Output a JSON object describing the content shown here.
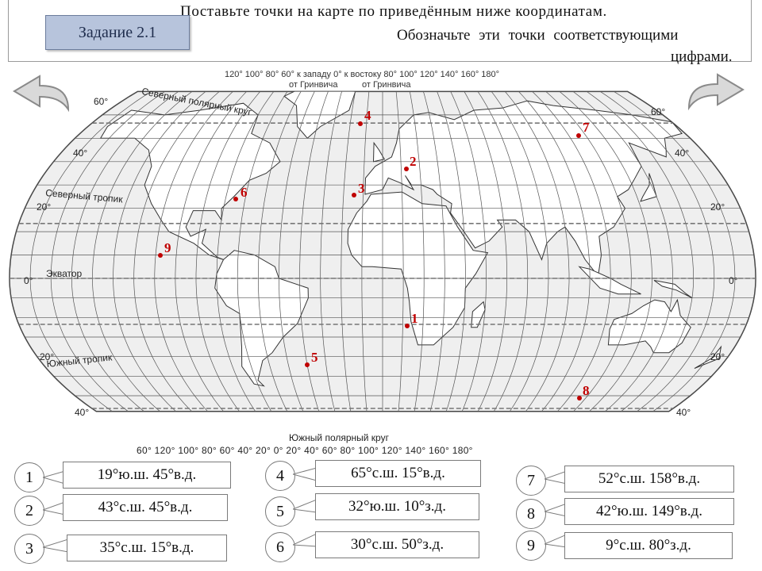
{
  "header": {
    "task_label": "Задание 2.1",
    "instruction_line1": "Поставьте точки на карте по приведённым ниже координатам.",
    "instruction_line2": "Обозначьте эти точки соответствующими",
    "instruction_line3": "цифрами."
  },
  "navigation": {
    "prev_icon": "curved-arrow-left-icon",
    "next_icon": "curved-arrow-right-icon"
  },
  "map": {
    "top_scale": "120° 100° 80° 60° к западу 0° к востоку 80° 100° 120° 140° 160° 180°",
    "top_sub_west": "от Гринвича",
    "top_sub_east": "от Гринвича",
    "bottom_scale": "60°   120°   100°   80°   60°   40°   20°   0°   20°   40°   60°   80°   100°   120°   140°   160°   180°",
    "lines": {
      "arctic": "Северный полярный круг",
      "tropic_north": "Северный тропик",
      "equator": "Экватор",
      "tropic_south": "Южный тропик",
      "antarctic": "Южный полярный круг"
    },
    "lat_labels": {
      "n60": "60°",
      "n40": "40°",
      "n20": "20°",
      "eq": "0°",
      "s20": "20°",
      "s40": "40°",
      "e60": "60°",
      "e40": "40°",
      "e20": "20°",
      "e0": "0°",
      "es20": "20°",
      "es40": "40°"
    },
    "points": [
      {
        "label": "1",
        "lat": -19,
        "lon": 45
      },
      {
        "label": "2",
        "lat": 43,
        "lon": 45
      },
      {
        "label": "3",
        "lat": 35,
        "lon": 15
      },
      {
        "label": "4",
        "lat": 65,
        "lon": 15
      },
      {
        "label": "5",
        "lat": -32,
        "lon": -10
      },
      {
        "label": "6",
        "lat": 30,
        "lon": -50
      },
      {
        "label": "7",
        "lat": 52,
        "lon": 158
      },
      {
        "label": "8",
        "lat": -42,
        "lon": 149
      },
      {
        "label": "9",
        "lat": 9,
        "lon": -80
      }
    ]
  },
  "tasks": [
    {
      "number": "1",
      "coords": "19°ю.ш. 45°в.д."
    },
    {
      "number": "2",
      "coords": "43°с.ш. 45°в.д."
    },
    {
      "number": "3",
      "coords": "35°с.ш. 15°в.д."
    },
    {
      "number": "4",
      "coords": "65°с.ш. 15°в.д."
    },
    {
      "number": "5",
      "coords": "32°ю.ш. 10°з.д."
    },
    {
      "number": "6",
      "coords": "30°с.ш. 50°з.д."
    },
    {
      "number": "7",
      "coords": "52°с.ш. 158°в.д."
    },
    {
      "number": "8",
      "coords": "42°ю.ш. 149°в.д."
    },
    {
      "number": "9",
      "coords": "9°с.ш. 80°з.д."
    }
  ]
}
